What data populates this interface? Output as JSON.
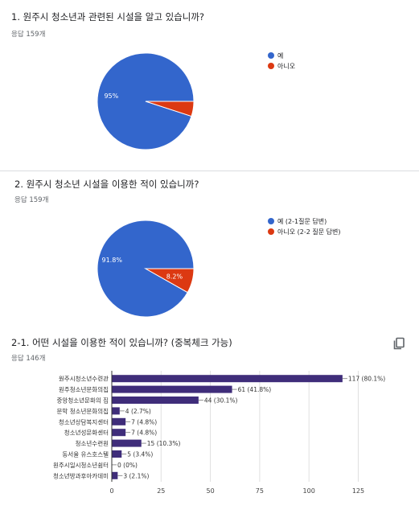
{
  "q1": {
    "title": "1. 원주시 청소년과 관련된 시설을 알고 있습니까?",
    "responses": "응답 159개"
  },
  "q2": {
    "title": "2. 원주시 청소년 시설을 이용한 적이 있습니까?",
    "responses": "응답 159개"
  },
  "q3": {
    "title": "2-1. 어떤 시설을 이용한 적이 있습니까? (중복체크 가능)",
    "responses": "응답 146개"
  },
  "colors": {
    "blue": "#3366cc",
    "red": "#dc3912",
    "purple": "#3f2d7a"
  },
  "chart_data": [
    {
      "type": "pie",
      "labels": [
        "예",
        "아니오"
      ],
      "values": [
        95,
        5
      ],
      "slice_labels": [
        "95%",
        ""
      ],
      "colors": [
        "#3366cc",
        "#dc3912"
      ],
      "legend": "right"
    },
    {
      "type": "pie",
      "labels": [
        "예 (2-1질문 답변)",
        "아니오 (2-2 질문 답변)"
      ],
      "values": [
        91.8,
        8.2
      ],
      "slice_labels": [
        "91.8%",
        "8.2%"
      ],
      "colors": [
        "#3366cc",
        "#dc3912"
      ],
      "legend": "right"
    },
    {
      "type": "bar",
      "orientation": "horizontal",
      "categories": [
        "원주시청소년수련관",
        "원주청소년문화의집",
        "중앙청소년문화의 집",
        "문막 청소년문화의집",
        "청소년상담복지센터",
        "청소년성문화센터",
        "청소년수련원",
        "동서울 유스호스텔",
        "원주시일시청소년쉼터",
        "청소년방과후아카데미"
      ],
      "values": [
        117,
        61,
        44,
        4,
        7,
        7,
        15,
        5,
        0,
        3
      ],
      "value_labels": [
        "117 (80.1%)",
        "61 (41.8%)",
        "44 (30.1%)",
        "4 (2.7%)",
        "7 (4.8%)",
        "7 (4.8%)",
        "15 (10.3%)",
        "5 (3.4%)",
        "0 (0%)",
        "3 (2.1%)"
      ],
      "xlim": [
        0,
        135
      ],
      "xticks": [
        0,
        25,
        50,
        75,
        100,
        125
      ],
      "grid": true,
      "color": "#3f2d7a"
    }
  ]
}
